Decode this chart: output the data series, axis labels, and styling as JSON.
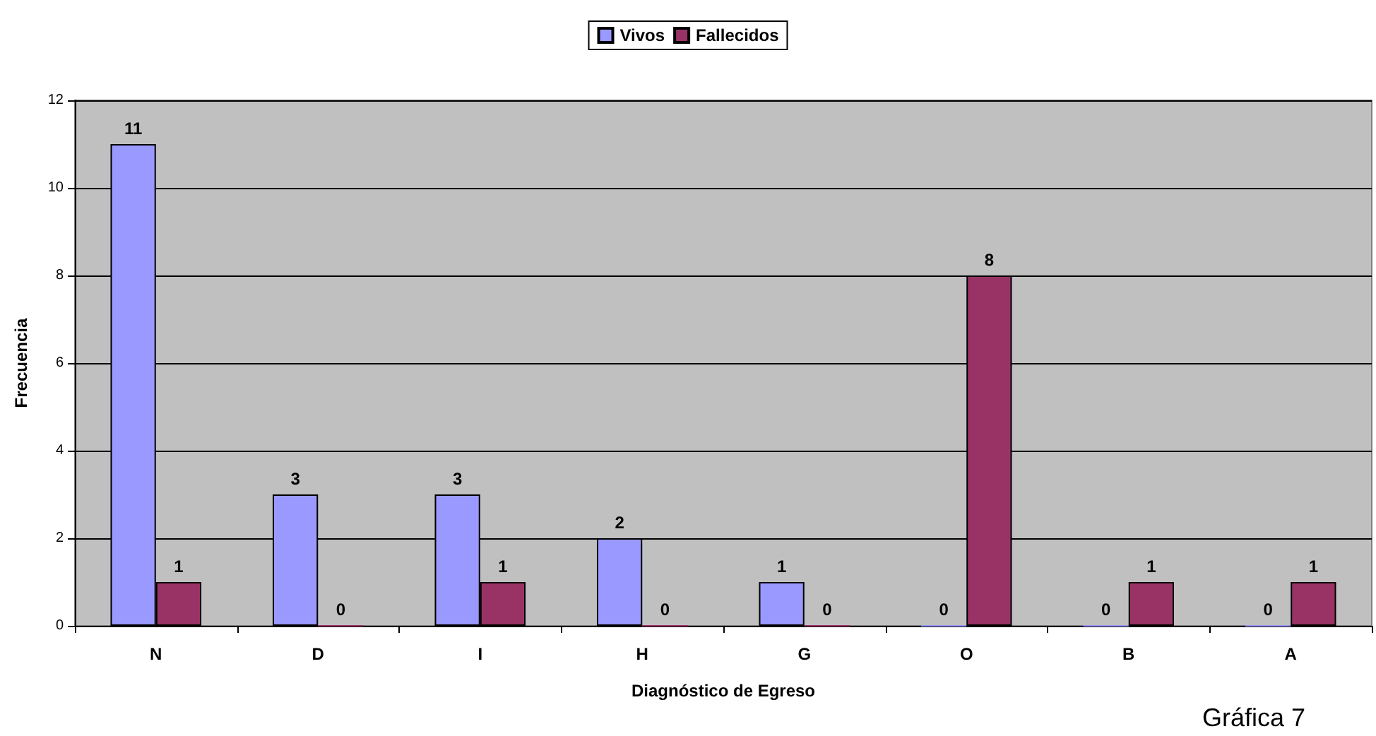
{
  "chart_data": {
    "type": "bar",
    "xlabel": "Diagnóstico de Egreso",
    "ylabel": "Frecuencia",
    "categories": [
      "N",
      "D",
      "I",
      "H",
      "G",
      "O",
      "B",
      "A"
    ],
    "series": [
      {
        "name": "Vivos",
        "color": "#9999ff",
        "values": [
          11,
          3,
          3,
          2,
          1,
          0,
          0,
          0
        ]
      },
      {
        "name": "Fallecidos",
        "color": "#993366",
        "values": [
          1,
          0,
          1,
          0,
          0,
          8,
          1,
          1
        ]
      }
    ],
    "ylim": [
      0,
      12
    ],
    "yticks": [
      0,
      2,
      4,
      6,
      8,
      10,
      12
    ],
    "grid": "y",
    "legend": "top",
    "data_labels": true,
    "annotations": [
      "Gráfica 7"
    ]
  }
}
